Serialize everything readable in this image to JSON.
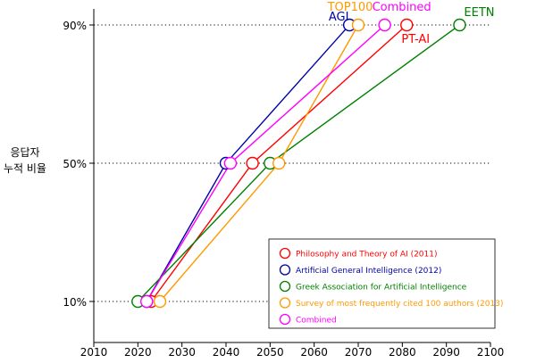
{
  "chart_data": {
    "type": "line",
    "ylabel_lines": [
      "응답자",
      "누적 비율"
    ],
    "xlim": [
      2010,
      2100
    ],
    "xticks": [
      2010,
      2020,
      2030,
      2040,
      2050,
      2060,
      2070,
      2080,
      2090,
      2100
    ],
    "y_levels": [
      "10%",
      "50%",
      "90%"
    ],
    "grid": "dotted horizontal lines at 10%, 50%, 90%",
    "legend_position": "lower-right",
    "series": [
      {
        "name": "Philosophy and Theory of AI (2011)",
        "label": "PT-AI",
        "color": "#ff0000",
        "x": [
          2023,
          2046,
          2081
        ],
        "y": [
          "10%",
          "50%",
          "90%"
        ]
      },
      {
        "name": "Artificial General Intelligence (2012)",
        "label": "AGI",
        "color": "#0000aa",
        "x": [
          2022,
          2040,
          2068
        ],
        "y": [
          "10%",
          "50%",
          "90%"
        ]
      },
      {
        "name": "Greek Association for Artificial Intelligence",
        "label": "EETN",
        "color": "#008000",
        "x": [
          2020,
          2050,
          2093
        ],
        "y": [
          "10%",
          "50%",
          "90%"
        ]
      },
      {
        "name": "Survey of most frequently cited 100 authors (2013)",
        "label": "TOP100",
        "color": "#ff9900",
        "x": [
          2025,
          2052,
          2070
        ],
        "y": [
          "10%",
          "50%",
          "90%"
        ]
      },
      {
        "name": "Combined",
        "label": "Combined",
        "color": "#ff00ff",
        "x": [
          2022,
          2041,
          2076
        ],
        "y": [
          "10%",
          "50%",
          "90%"
        ]
      }
    ]
  }
}
